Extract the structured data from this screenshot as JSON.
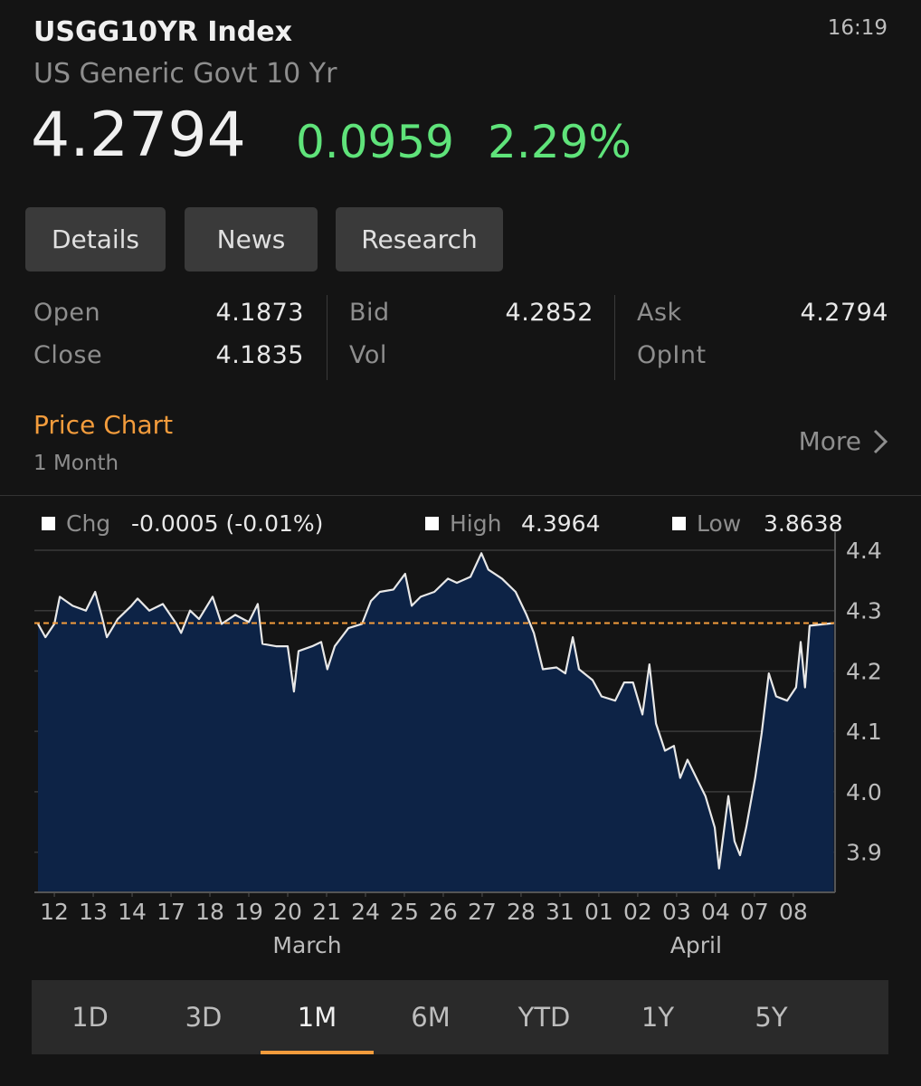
{
  "header": {
    "ticker": "USGG10YR Index",
    "time": "16:19",
    "name": "US Generic Govt 10 Yr",
    "last": "4.2794",
    "change": "0.0959",
    "change_pct": "2.29%"
  },
  "buttons": [
    "Details",
    "News",
    "Research"
  ],
  "stats": [
    [
      {
        "label": "Open",
        "value": "4.1873"
      },
      {
        "label": "Close",
        "value": "4.1835"
      }
    ],
    [
      {
        "label": "Bid",
        "value": "4.2852"
      },
      {
        "label": "Vol"
      }
    ],
    [
      {
        "label": "Ask",
        "value": "4.2794"
      },
      {
        "label": "OpInt"
      }
    ]
  ],
  "section": {
    "title": "Price Chart",
    "period": "1 Month",
    "more": "More"
  },
  "chart_data": {
    "type": "area",
    "legend": [
      {
        "label": "Chg",
        "value": "-0.0005 (-0.01%)"
      },
      {
        "label": "High",
        "value": "4.3964"
      },
      {
        "label": "Low",
        "value": "3.8638"
      }
    ],
    "x": [
      -0.42,
      -0.23,
      0,
      0.14,
      0.47,
      0.81,
      1.05,
      1.21,
      1.35,
      1.63,
      1.98,
      2.14,
      2.44,
      2.79,
      3.14,
      3.26,
      3.49,
      3.72,
      4.07,
      4.3,
      4.65,
      5.0,
      5.23,
      5.35,
      5.7,
      6.0,
      6.16,
      6.28,
      6.63,
      6.86,
      7.02,
      7.21,
      7.56,
      7.91,
      8.14,
      8.37,
      8.72,
      9.02,
      9.19,
      9.42,
      9.77,
      10.12,
      10.35,
      10.7,
      10.98,
      11.16,
      11.51,
      11.86,
      12.14,
      12.33,
      12.56,
      12.91,
      13.14,
      13.33,
      13.49,
      13.84,
      14.07,
      14.42,
      14.65,
      14.88,
      15.12,
      15.3,
      15.47,
      15.7,
      15.93,
      16.09,
      16.28,
      16.51,
      16.74,
      16.98,
      17.09,
      17.33,
      17.49,
      17.63,
      17.79,
      18.02,
      18.19,
      18.37,
      18.56,
      18.84,
      19.07,
      19.19,
      19.3,
      19.42,
      20.04
    ],
    "series": [
      {
        "color": "#e8e8e8",
        "fill": "#0d2346",
        "values": [
          4.278,
          4.256,
          4.278,
          4.323,
          4.308,
          4.3,
          4.331,
          4.293,
          4.256,
          4.286,
          4.308,
          4.32,
          4.3,
          4.311,
          4.278,
          4.263,
          4.3,
          4.286,
          4.323,
          4.278,
          4.293,
          4.281,
          4.311,
          4.245,
          4.241,
          4.241,
          4.166,
          4.233,
          4.241,
          4.248,
          4.203,
          4.241,
          4.271,
          4.278,
          4.316,
          4.331,
          4.335,
          4.361,
          4.308,
          4.323,
          4.331,
          4.353,
          4.346,
          4.356,
          4.395,
          4.368,
          4.353,
          4.331,
          4.293,
          4.263,
          4.203,
          4.206,
          4.196,
          4.256,
          4.203,
          4.185,
          4.158,
          4.151,
          4.181,
          4.181,
          4.128,
          4.211,
          4.113,
          4.068,
          4.076,
          4.023,
          4.053,
          4.023,
          3.993,
          3.941,
          3.873,
          3.993,
          3.918,
          3.895,
          3.941,
          4.023,
          4.098,
          4.196,
          4.158,
          4.151,
          4.173,
          4.248,
          4.173,
          4.275,
          4.2794
        ]
      }
    ],
    "reference_line": {
      "value": 4.2794,
      "color": "#f39c3c"
    },
    "xlim": [
      -0.42,
      20.05
    ],
    "xticks": [
      {
        "value": 0,
        "label": "12"
      },
      {
        "value": 1,
        "label": "13"
      },
      {
        "value": 2,
        "label": "14"
      },
      {
        "value": 3,
        "label": "17"
      },
      {
        "value": 4,
        "label": "18"
      },
      {
        "value": 5,
        "label": "19"
      },
      {
        "value": 6,
        "label": "20"
      },
      {
        "value": 7,
        "label": "21"
      },
      {
        "value": 8,
        "label": "24"
      },
      {
        "value": 9,
        "label": "25"
      },
      {
        "value": 10,
        "label": "26"
      },
      {
        "value": 11,
        "label": "27"
      },
      {
        "value": 12,
        "label": "28"
      },
      {
        "value": 13,
        "label": "31"
      },
      {
        "value": 14,
        "label": "01"
      },
      {
        "value": 15,
        "label": "02"
      },
      {
        "value": 16,
        "label": "03"
      },
      {
        "value": 17,
        "label": "04"
      },
      {
        "value": 18,
        "label": "07"
      },
      {
        "value": 19,
        "label": "08"
      }
    ],
    "month_ticks": [
      {
        "value": 6.5,
        "label": "March"
      },
      {
        "value": 16.5,
        "label": "April"
      }
    ],
    "ylim": [
      3.835,
      4.415
    ],
    "yticks": [
      4.4,
      4.3,
      4.2,
      4.1,
      {
        "value": 4,
        "label": "4.0"
      },
      3.9
    ],
    "grid": true
  },
  "periods": {
    "options": [
      "1D",
      "3D",
      "1M",
      "6M",
      "YTD",
      "1Y",
      "5Y"
    ],
    "selected": 2
  }
}
